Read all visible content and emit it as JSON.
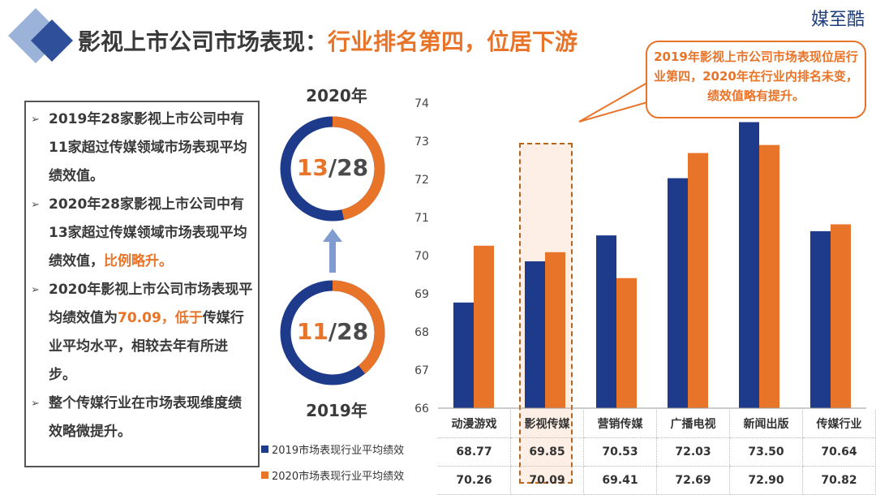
{
  "brand": "媒至酷",
  "title": {
    "main": "影视上市公司市场表现：",
    "highlight": "行业排名第四，位居下游"
  },
  "callout": "2019年影视上市公司市场表现位居行业第四，2020年在行业内排名未变，绩效值略有提升。",
  "bullets": [
    {
      "parts": [
        {
          "text": "2019年28家影视上市公司中有11家超过传媒领域市场表现平均绩效值。",
          "hl": false
        }
      ]
    },
    {
      "parts": [
        {
          "text": "2020年28家影视上市公司中有13家超过传媒领域市场表现平均绩效值，",
          "hl": false
        },
        {
          "text": "比例略升。",
          "hl": true
        }
      ]
    },
    {
      "parts": [
        {
          "text": "2020年影视上市公司市场表现平均绩效值为",
          "hl": false
        },
        {
          "text": "70.09，低于",
          "hl": true
        },
        {
          "text": "传媒行业平均水平，相较去年有所进步。",
          "hl": false
        }
      ]
    },
    {
      "parts": [
        {
          "text": "整个传媒行业在市场表现维度绩效略微提升。",
          "hl": false
        }
      ]
    }
  ],
  "rings": {
    "top": {
      "year": "2020年",
      "num": "13",
      "den": "/28",
      "value": 13,
      "total": 28
    },
    "bottom": {
      "year": "2019年",
      "num": "11",
      "den": "/28",
      "value": 11,
      "total": 28
    }
  },
  "colors": {
    "blue": "#1e3a8a",
    "orange": "#e8742a",
    "arrow": "#7f9bcf"
  },
  "chart_data": {
    "type": "bar",
    "categories": [
      "动漫游戏",
      "影视传媒",
      "营销传媒",
      "广播电视",
      "新闻出版",
      "传媒行业"
    ],
    "series": [
      {
        "name": "2019市场表现行业平均绩效",
        "values": [
          68.77,
          69.85,
          70.53,
          72.03,
          73.5,
          70.64
        ]
      },
      {
        "name": "2020市场表现行业平均绩效",
        "values": [
          70.26,
          70.09,
          69.41,
          72.69,
          72.9,
          70.82
        ]
      }
    ],
    "value_labels": [
      [
        "68.77",
        "69.85",
        "70.53",
        "72.03",
        "73.50",
        "70.64"
      ],
      [
        "70.26",
        "70.09",
        "69.41",
        "72.69",
        "72.90",
        "70.82"
      ]
    ],
    "yticks": [
      "66",
      "67",
      "68",
      "69",
      "70",
      "71",
      "72",
      "73",
      "74"
    ],
    "ylim": [
      66,
      74
    ],
    "highlight_category": "影视传媒",
    "legend": "data-table-left",
    "grid": false
  }
}
